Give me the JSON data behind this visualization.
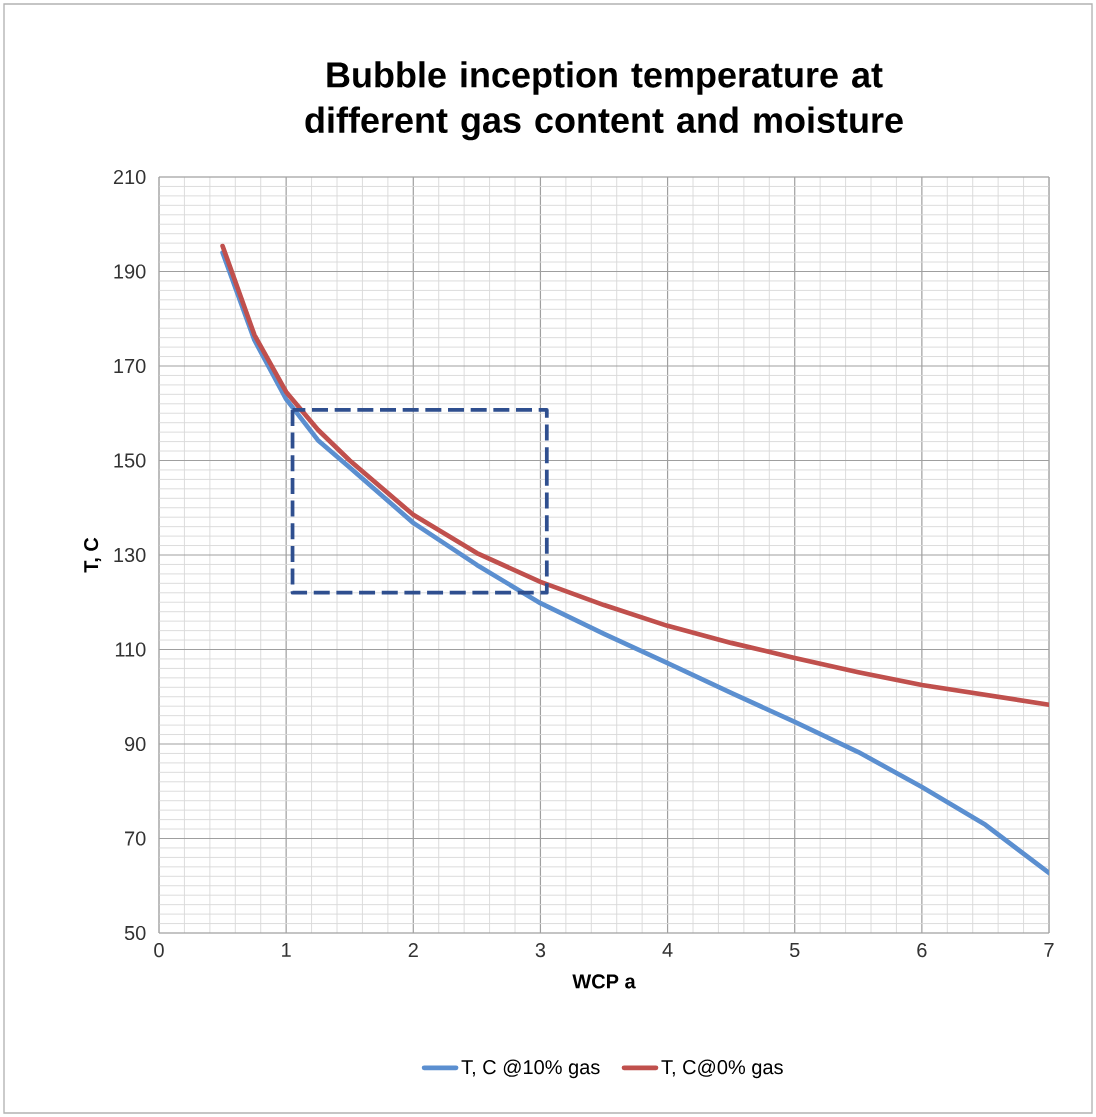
{
  "chart_data": {
    "type": "line",
    "title": "Bubble inception temperature at different gas content and moisture",
    "xlabel": "WCP a",
    "ylabel": "T, C",
    "xlim": [
      0,
      7
    ],
    "ylim": [
      50,
      210
    ],
    "xticks": [
      0,
      1,
      2,
      3,
      4,
      5,
      6,
      7
    ],
    "yticks": [
      50,
      70,
      90,
      110,
      130,
      150,
      170,
      190,
      210
    ],
    "grid": true,
    "legend": "bottom",
    "marker": "none",
    "series": [
      {
        "name": "T, C @10% gas",
        "color": "#5b8fd0",
        "x": [
          0.5,
          0.75,
          1,
          1.25,
          1.5,
          2,
          2.5,
          3,
          3.5,
          4,
          4.5,
          5,
          5.5,
          6,
          6.5,
          7
        ],
        "values": [
          194,
          175.5,
          163,
          154.3,
          148.5,
          136.8,
          127.9,
          119.8,
          113.3,
          107.1,
          100.8,
          94.7,
          88.3,
          80.9,
          72.9,
          62.7
        ]
      },
      {
        "name": "T, C@0% gas",
        "color": "#c0504d",
        "x": [
          0.5,
          0.75,
          1,
          1.25,
          1.5,
          2,
          2.5,
          3,
          3.5,
          4,
          4.5,
          5,
          5.5,
          6,
          6.5,
          7
        ],
        "values": [
          195.4,
          176.6,
          164.5,
          156.5,
          150,
          138.5,
          130.4,
          124.3,
          119.4,
          115,
          111.4,
          108.2,
          105.2,
          102.5,
          100.4,
          98.3
        ]
      }
    ]
  }
}
